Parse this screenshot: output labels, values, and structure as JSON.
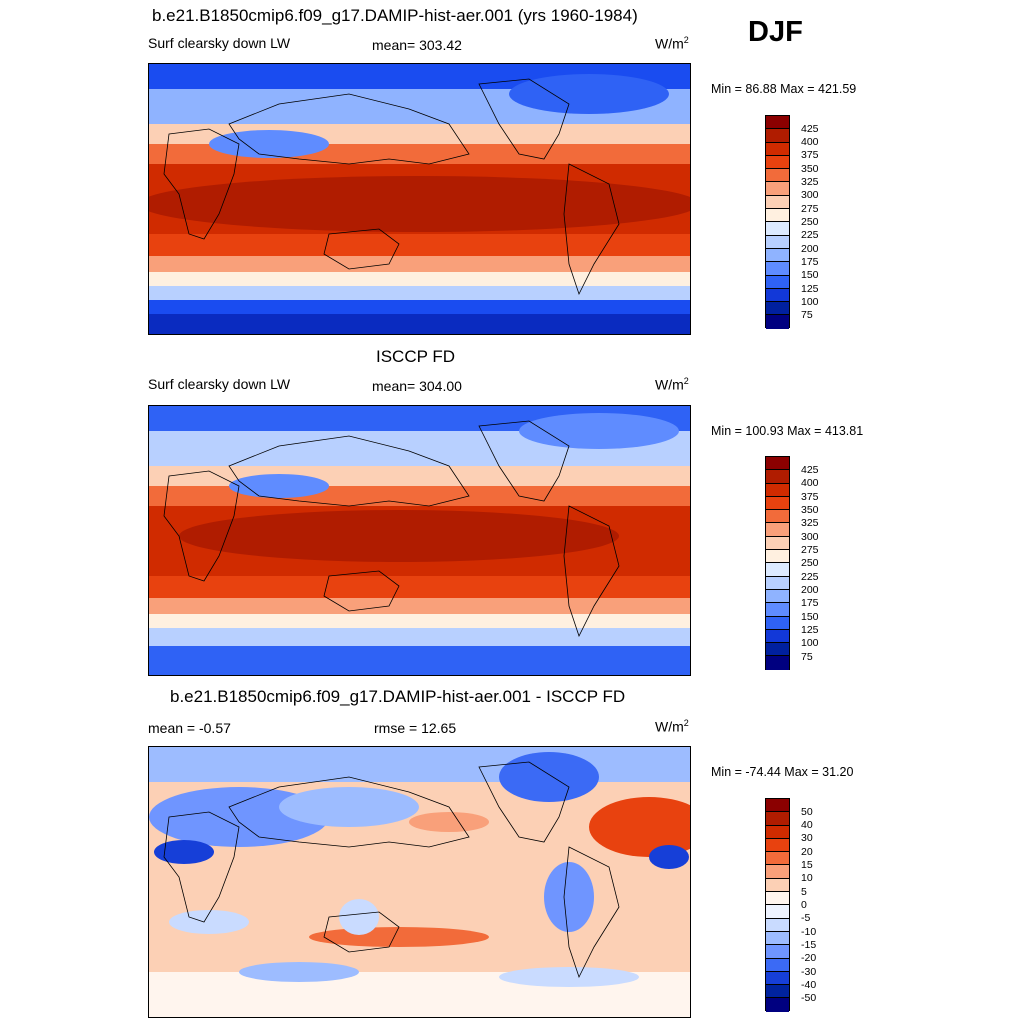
{
  "season": "DJF",
  "panels": [
    {
      "title": "b.e21.B1850cmip6.f09_g17.DAMIP-hist-aer.001 (yrs 1960-1984)",
      "left_label": "Surf clearsky down LW",
      "center_label": "mean= 303.42",
      "units": "W/m",
      "units_sup": "2",
      "minmax": "Min =  86.88 Max = 421.59",
      "colorbar_labels": [
        "425",
        "400",
        "375",
        "350",
        "325",
        "300",
        "275",
        "250",
        "225",
        "200",
        "175",
        "150",
        "125",
        "100",
        "75"
      ],
      "colors": [
        "#8b0000",
        "#b01c00",
        "#d02b00",
        "#e8420f",
        "#f26b3a",
        "#f9a07a",
        "#fcd0b5",
        "#fff0e0",
        "#dceaff",
        "#b8d0ff",
        "#8fb3ff",
        "#5f8cff",
        "#2f62f5",
        "#1238d8",
        "#00209f",
        "#000080"
      ]
    },
    {
      "title": "ISCCP FD",
      "left_label": "Surf clearsky down LW",
      "center_label": "mean= 304.00",
      "units": "W/m",
      "units_sup": "2",
      "minmax": "Min = 100.93 Max = 413.81",
      "colorbar_labels": [
        "425",
        "400",
        "375",
        "350",
        "325",
        "300",
        "275",
        "250",
        "225",
        "200",
        "175",
        "150",
        "125",
        "100",
        "75"
      ],
      "colors": [
        "#8b0000",
        "#b01c00",
        "#d02b00",
        "#e8420f",
        "#f26b3a",
        "#f9a07a",
        "#fcd0b5",
        "#fff0e0",
        "#dceaff",
        "#b8d0ff",
        "#8fb3ff",
        "#5f8cff",
        "#2f62f5",
        "#1238d8",
        "#00209f",
        "#000080"
      ]
    },
    {
      "title": "b.e21.B1850cmip6.f09_g17.DAMIP-hist-aer.001 - ISCCP FD",
      "left_label": "mean =  -0.57",
      "center_label": "rmse =  12.65",
      "units": "W/m",
      "units_sup": "2",
      "minmax": "Min = -74.44 Max =  31.20",
      "colorbar_labels": [
        "50",
        "40",
        "30",
        "20",
        "15",
        "10",
        "5",
        "0",
        "-5",
        "-10",
        "-15",
        "-20",
        "-30",
        "-40",
        "-50"
      ],
      "colors": [
        "#8b0000",
        "#b01c00",
        "#d02b00",
        "#e8420f",
        "#f26b3a",
        "#f9a07a",
        "#fcd0b5",
        "#fff5ee",
        "#eef3ff",
        "#c9dbff",
        "#9dbcff",
        "#6f95ff",
        "#3b6af5",
        "#163fd8",
        "#00239f",
        "#000080"
      ]
    }
  ]
}
